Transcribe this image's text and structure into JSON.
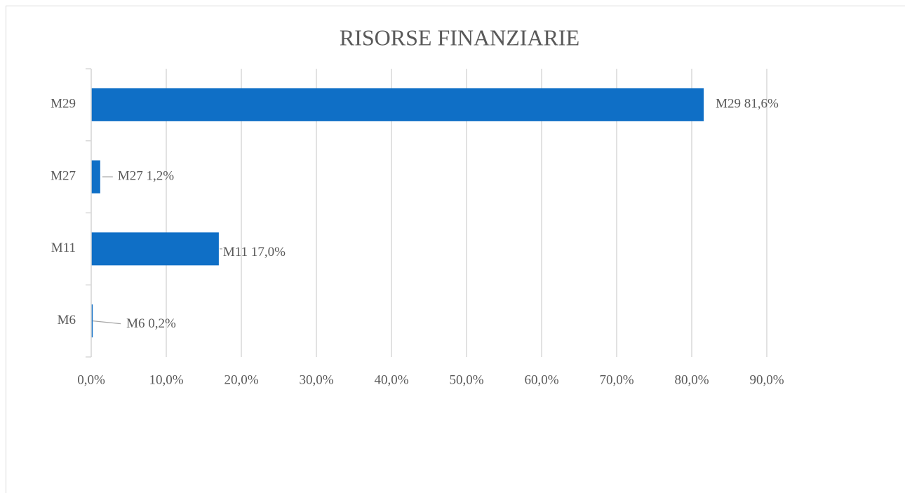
{
  "chart_data": {
    "type": "bar",
    "orientation": "horizontal",
    "title": "RISORSE FINANZIARIE",
    "categories": [
      "M29",
      "M27",
      "M11",
      "M6"
    ],
    "values": [
      81.6,
      1.2,
      17.0,
      0.2
    ],
    "value_labels": [
      "M29 81,6%",
      "M27 1,2%",
      "M11 17,0%",
      "M6 0,2%"
    ],
    "color": "#0f6fc6",
    "xlim": [
      0,
      90
    ],
    "xticks": [
      {
        "value": 0,
        "label": "0,0%"
      },
      {
        "value": 10,
        "label": "10,0%"
      },
      {
        "value": 20,
        "label": "20,0%"
      },
      {
        "value": 30,
        "label": "30,0%"
      },
      {
        "value": 40,
        "label": "40,0%"
      },
      {
        "value": 50,
        "label": "50,0%"
      },
      {
        "value": 60,
        "label": "60,0%"
      },
      {
        "value": 70,
        "label": "70,0%"
      },
      {
        "value": 80,
        "label": "80,0%"
      },
      {
        "value": 90,
        "label": "90,0%"
      }
    ],
    "grid": true
  }
}
